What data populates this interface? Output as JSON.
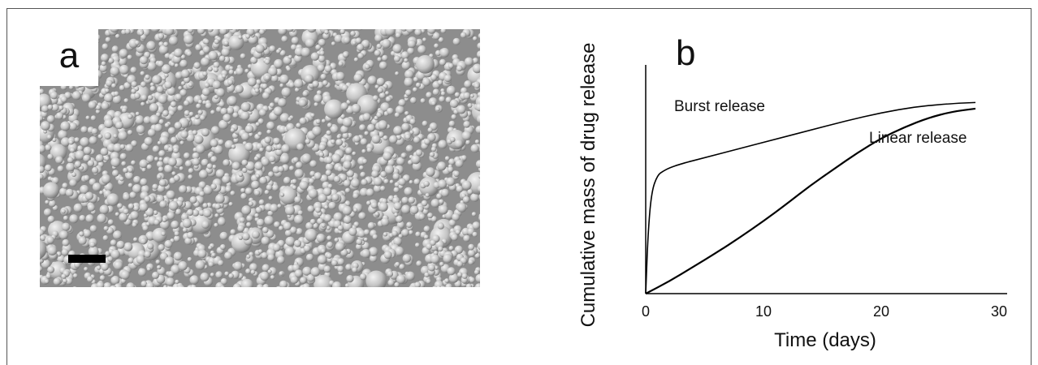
{
  "panel_a": {
    "label": "a",
    "description_icon": "micrograph-microspheres"
  },
  "chart_data": {
    "type": "line",
    "panel_label": "b",
    "title": "",
    "xlabel": "Time (days)",
    "ylabel": "Cumulative mass of drug release",
    "xlim": [
      0,
      30
    ],
    "ylim": [
      0,
      1
    ],
    "x_ticks": [
      "0",
      "10",
      "20",
      "30"
    ],
    "y_ticks": [],
    "grid": false,
    "series": [
      {
        "name": "Burst release",
        "color": "#000000",
        "x": [
          0,
          0.2,
          0.5,
          1,
          1.5,
          2,
          3,
          5,
          8,
          11,
          14,
          17,
          20,
          23,
          26,
          28
        ],
        "y": [
          0.0,
          0.3,
          0.5,
          0.58,
          0.6,
          0.615,
          0.635,
          0.665,
          0.71,
          0.755,
          0.8,
          0.845,
          0.885,
          0.915,
          0.93,
          0.935
        ]
      },
      {
        "name": "Linear release",
        "color": "#000000",
        "x": [
          0,
          2,
          4,
          6,
          8,
          10,
          12,
          14,
          16,
          18,
          20,
          22,
          24,
          26,
          28
        ],
        "y": [
          0.0,
          0.06,
          0.13,
          0.2,
          0.275,
          0.355,
          0.44,
          0.53,
          0.61,
          0.69,
          0.76,
          0.815,
          0.86,
          0.89,
          0.905
        ]
      }
    ]
  }
}
